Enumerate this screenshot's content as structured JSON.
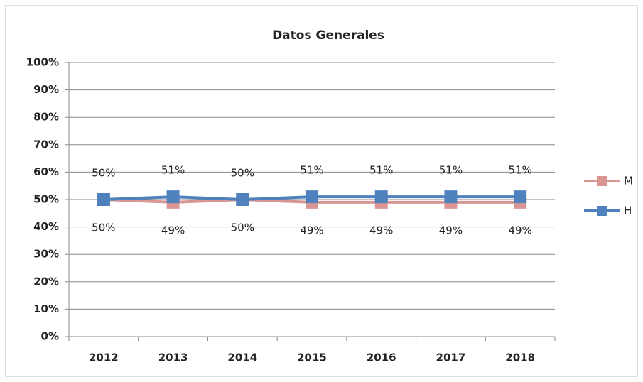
{
  "chart_data": {
    "type": "line",
    "title": "Datos Generales",
    "categories": [
      "2012",
      "2013",
      "2014",
      "2015",
      "2016",
      "2017",
      "2018"
    ],
    "series": [
      {
        "name": "M",
        "color": "#d99694",
        "values": [
          50,
          49,
          50,
          49,
          49,
          49,
          49
        ],
        "value_labels": [
          "50%",
          "49%",
          "50%",
          "49%",
          "49%",
          "49%",
          "49%"
        ]
      },
      {
        "name": "H",
        "color": "#4f81bd",
        "values": [
          50,
          51,
          50,
          51,
          51,
          51,
          51
        ],
        "value_labels": [
          "50%",
          "51%",
          "50%",
          "51%",
          "51%",
          "51%",
          "51%"
        ]
      }
    ],
    "ylim": [
      0,
      100
    ],
    "yticks": [
      {
        "value": 0,
        "label": "0%"
      },
      {
        "value": 10,
        "label": "10%"
      },
      {
        "value": 20,
        "label": "20%"
      },
      {
        "value": 30,
        "label": "30%"
      },
      {
        "value": 40,
        "label": "40%"
      },
      {
        "value": 50,
        "label": "50%"
      },
      {
        "value": 60,
        "label": "60%"
      },
      {
        "value": 70,
        "label": "70%"
      },
      {
        "value": 80,
        "label": "80%"
      },
      {
        "value": 90,
        "label": "90%"
      },
      {
        "value": 100,
        "label": "100%"
      }
    ],
    "grid": true,
    "legend": "right"
  }
}
